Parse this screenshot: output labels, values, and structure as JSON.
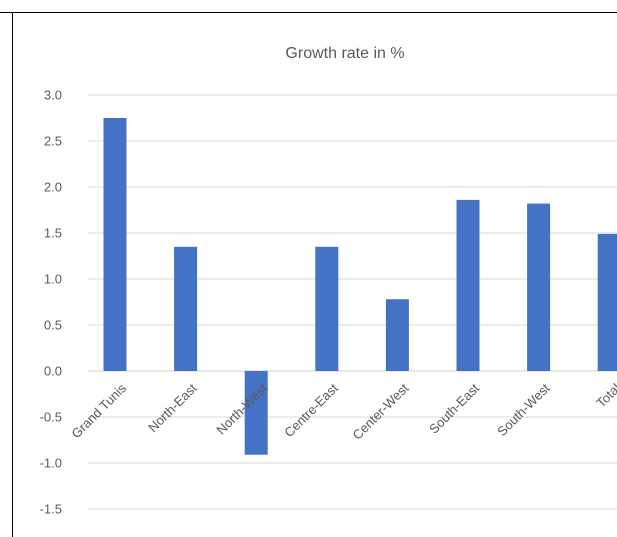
{
  "chart_data": {
    "type": "bar",
    "title": "Growth rate in %",
    "xlabel": "",
    "ylabel": "",
    "categories": [
      "Grand Tunis",
      "North-East",
      "North-West",
      "Centre-East",
      "Center-West",
      "South-East",
      "South-West",
      "Total"
    ],
    "series": [
      {
        "values": [
          2.75,
          1.35,
          -0.91,
          1.35,
          0.78,
          1.86,
          1.82,
          1.49
        ]
      }
    ],
    "ylim": [
      -1.5,
      3.0
    ],
    "yticks": [
      "3.0",
      "2.5",
      "2.0",
      "1.5",
      "1.0",
      "0.5",
      "0.0",
      "-0.5",
      "-1.0",
      "-1.5"
    ],
    "ytick_values": [
      3.0,
      2.5,
      2.0,
      1.5,
      1.0,
      0.5,
      0.0,
      -0.5,
      -1.0,
      -1.5
    ],
    "grid": true,
    "legend": "none",
    "colors": {
      "bar": "#4472C4",
      "grid": "#D9D9D9",
      "text": "#595959",
      "border": "#000000"
    }
  }
}
